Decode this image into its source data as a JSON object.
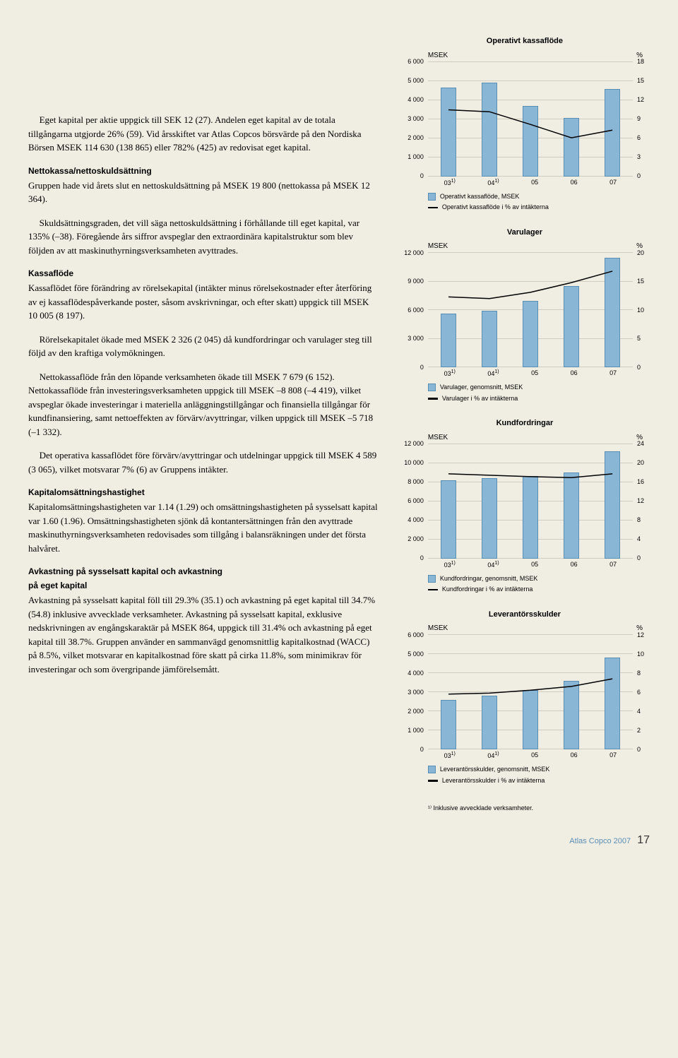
{
  "text": {
    "p1": "Eget kapital per aktie uppgick till SEK 12 (27). Andelen eget kapital av de totala tillgångarna utgjorde 26% (59). Vid årsskiftet var Atlas Copcos börsvärde på den Nordiska Börsen MSEK 114 630 (138 865) eller 782% (425) av redovisat eget kapital.",
    "h2": "Nettokassa/nettoskuldsättning",
    "p2": "Gruppen hade vid årets slut en nettoskuldsättning på MSEK 19 800 (nettokassa på MSEK 12 364).",
    "p2b": "Skuldsättningsgraden, det vill säga nettoskuldsättning i förhållande till eget kapital, var 135% (–38). Föregående års siffror avspeglar den extraordinära kapitalstruktur som blev följden av att maskinuthyrningsverksamheten avyttrades.",
    "h3": "Kassaflöde",
    "p3": "Kassaflödet före förändring av rörelsekapital (intäkter minus rörelsekostnader efter återföring av ej kassaflödespåverkande poster, såsom avskrivningar, och efter skatt) uppgick till MSEK 10 005 (8 197).",
    "p3b": "Rörelsekapitalet ökade med MSEK 2 326 (2 045) då kundfordringar och varulager steg till följd av den kraftiga volymökningen.",
    "p3c": "Nettokassaflöde från den löpande verksamheten ökade till MSEK 7 679 (6 152). Nettokassaflöde från investeringsverksamheten uppgick till MSEK –8 808 (–4 419), vilket avspeglar ökade investeringar i materiella anläggningstillgångar och finansiella tillgångar för kundfinansiering, samt nettoeffekten av förvärv/avyttringar, vilken uppgick till MSEK –5 718 (–1 332).",
    "p3d": "Det operativa kassaflödet före förvärv/avyttringar och utdelningar uppgick till MSEK 4 589 (3 065), vilket motsvarar 7% (6) av Gruppens intäkter.",
    "h4": "Kapitalomsättningshastighet",
    "p4": "Kapitalomsättningshastigheten var 1.14 (1.29) och omsättningshastigheten på sysselsatt kapital var 1.60 (1.96). Omsättningshastigheten sjönk då kontantersättningen från den avyttrade maskinuthyrningsverksamheten redovisades som tillgång i balansräkningen under det första halvåret.",
    "h5a": "Avkastning på sysselsatt kapital och avkastning",
    "h5b": "på eget kapital",
    "p5": "Avkastning på sysselsatt kapital föll till 29.3% (35.1) och avkastning på eget kapital till 34.7% (54.8) inklusive avvecklade verksamheter. Avkastning på sysselsatt kapital, exklusive nedskrivningen av engångskaraktär på MSEK 864, uppgick till 31.4% och avkastning på eget kapital till 38.7%. Gruppen använder en sammanvägd genomsnittlig kapitalkostnad (WACC) på 8.5%, vilket motsvarar en kapitalkostnad före skatt på cirka 11.8%, som minimikrav för investeringar och som övergripande jämförelsemått."
  },
  "charts": {
    "common": {
      "bar_fill": "#8ab6d6",
      "bar_stroke": "#5a8fb5",
      "line_color": "#000000",
      "grid_color": "#d0ccbf",
      "bg": "#f0ede3",
      "categories": [
        "03¹⁾",
        "04¹⁾",
        "05",
        "06",
        "07"
      ],
      "left_label": "MSEK",
      "right_label": "%"
    },
    "chart1": {
      "title": "Operativt kassaflöde",
      "y_left_ticks": [
        0,
        1000,
        2000,
        3000,
        4000,
        5000,
        6000
      ],
      "y_left_labels": [
        "0",
        "1 000",
        "2 000",
        "3 000",
        "4 000",
        "5 000",
        "6 000"
      ],
      "y_right_ticks": [
        0,
        3,
        6,
        9,
        12,
        15,
        18
      ],
      "bars_values": [
        4650,
        4900,
        3700,
        3065,
        4589
      ],
      "line_values_pct": [
        10.5,
        10.2,
        8.2,
        6.1,
        7.3
      ],
      "legend_bar": "Operativt kassaflöde, MSEK",
      "legend_line": "Operativt kassaflöde i % av intäkterna"
    },
    "chart2": {
      "title": "Varulager",
      "y_left_ticks": [
        0,
        3000,
        6000,
        9000,
        12000
      ],
      "y_left_labels": [
        "0",
        "3 000",
        "6 000",
        "9 000",
        "12 000"
      ],
      "y_right_ticks": [
        0,
        5,
        10,
        15,
        20
      ],
      "bars_values": [
        5600,
        5900,
        7000,
        8500,
        11500
      ],
      "line_values_pct": [
        12.3,
        12.0,
        13.1,
        14.8,
        16.8
      ],
      "legend_bar": "Varulager, genomsnitt, MSEK",
      "legend_line": "Varulager i % av intäkterna"
    },
    "chart3": {
      "title": "Kundfordringar",
      "y_left_ticks": [
        0,
        2000,
        4000,
        6000,
        8000,
        10000,
        12000
      ],
      "y_left_labels": [
        "0",
        "2 000",
        "4 000",
        "6 000",
        "8 000",
        "10 000",
        "12 000"
      ],
      "y_right_ticks": [
        0,
        4,
        8,
        12,
        16,
        20,
        24
      ],
      "bars_values": [
        8200,
        8400,
        8600,
        9000,
        11200
      ],
      "line_values_pct": [
        17.8,
        17.5,
        17.2,
        17.0,
        17.8
      ],
      "legend_bar": "Kundfordringar, genomsnitt, MSEK",
      "legend_line": "Kundfordringar i % av intäkterna"
    },
    "chart4": {
      "title": "Leverantörsskulder",
      "y_left_ticks": [
        0,
        1000,
        2000,
        3000,
        4000,
        5000,
        6000
      ],
      "y_left_labels": [
        "0",
        "1 000",
        "2 000",
        "3 000",
        "4 000",
        "5 000",
        "6 000"
      ],
      "y_right_ticks": [
        0,
        2,
        4,
        6,
        8,
        10,
        12
      ],
      "bars_values": [
        2600,
        2800,
        3100,
        3600,
        4800
      ],
      "line_values_pct": [
        5.8,
        5.9,
        6.2,
        6.6,
        7.4
      ],
      "legend_bar": "Leverantörsskulder, genomsnitt, MSEK",
      "legend_line": "Leverantörsskulder i % av intäkterna"
    }
  },
  "footnote": "¹⁾ Inklusive avvecklade verksamheter.",
  "footer": {
    "brand": "Atlas Copco 2007",
    "page": "17"
  }
}
